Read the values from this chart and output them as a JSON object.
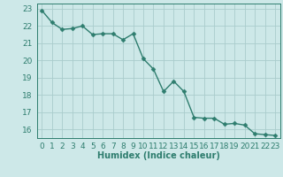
{
  "x": [
    0,
    1,
    2,
    3,
    4,
    5,
    6,
    7,
    8,
    9,
    10,
    11,
    12,
    13,
    14,
    15,
    16,
    17,
    18,
    19,
    20,
    21,
    22,
    23
  ],
  "y": [
    22.9,
    22.2,
    21.8,
    21.85,
    22.0,
    21.5,
    21.55,
    21.55,
    21.2,
    21.55,
    20.1,
    19.5,
    18.2,
    18.8,
    18.2,
    16.7,
    16.65,
    16.65,
    16.3,
    16.35,
    16.25,
    15.75,
    15.7,
    15.65
  ],
  "line_color": "#2e7d6e",
  "marker": "D",
  "marker_size": 2.5,
  "bg_color": "#cde8e8",
  "grid_color": "#aacccc",
  "xlabel": "Humidex (Indice chaleur)",
  "ylim": [
    15.5,
    23.3
  ],
  "xlim": [
    -0.5,
    23.5
  ],
  "yticks": [
    16,
    17,
    18,
    19,
    20,
    21,
    22,
    23
  ],
  "xticks": [
    0,
    1,
    2,
    3,
    4,
    5,
    6,
    7,
    8,
    9,
    10,
    11,
    12,
    13,
    14,
    15,
    16,
    17,
    18,
    19,
    20,
    21,
    22,
    23
  ],
  "xlabel_fontsize": 7,
  "tick_fontsize": 6.5,
  "line_width": 1.0
}
